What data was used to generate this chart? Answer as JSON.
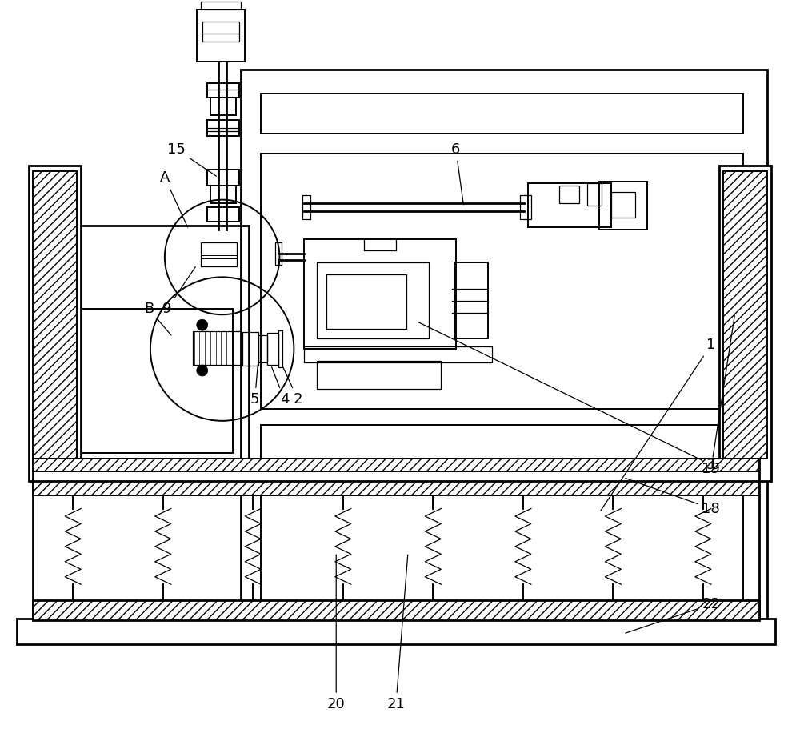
{
  "bg_color": "#ffffff",
  "line_color": "#000000",
  "figsize": [
    10.0,
    9.41
  ],
  "lw_main": 2.0,
  "lw_mid": 1.4,
  "lw_thin": 0.9
}
